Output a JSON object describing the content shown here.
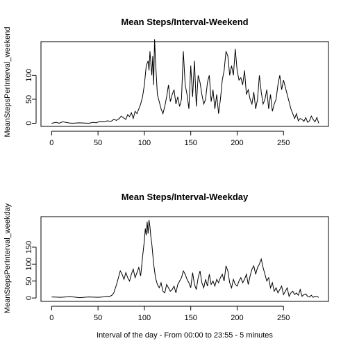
{
  "chart_data": [
    {
      "type": "line",
      "title": "Mean Steps/Interval-Weekend",
      "ylabel": "MeanStepsPerInterval_weekend",
      "xlabel": "",
      "xlim": [
        -11.5,
        298.5
      ],
      "ylim": [
        -6.5,
        170
      ],
      "xticks": [
        0,
        50,
        100,
        150,
        200,
        250
      ],
      "yticks": [
        0,
        50,
        100
      ],
      "grid": false,
      "legend": "none",
      "x": [
        0,
        5,
        8,
        12,
        18,
        22,
        30,
        40,
        45,
        48,
        52,
        56,
        60,
        64,
        67,
        70,
        73,
        75,
        77,
        80,
        82,
        84,
        86,
        88,
        90,
        92,
        94,
        96,
        98,
        100,
        102,
        104,
        105,
        106,
        107,
        108,
        109,
        110,
        111,
        112,
        114,
        116,
        118,
        120,
        122,
        124,
        126,
        128,
        130,
        132,
        134,
        136,
        138,
        140,
        142,
        144,
        146,
        148,
        150,
        152,
        154,
        156,
        158,
        160,
        162,
        164,
        166,
        168,
        170,
        172,
        174,
        176,
        178,
        180,
        182,
        184,
        186,
        188,
        190,
        192,
        194,
        196,
        198,
        200,
        202,
        204,
        206,
        208,
        210,
        212,
        214,
        216,
        218,
        220,
        222,
        224,
        226,
        228,
        230,
        232,
        234,
        236,
        238,
        240,
        242,
        244,
        246,
        248,
        250,
        252,
        254,
        256,
        258,
        260,
        262,
        264,
        266,
        268,
        270,
        272,
        274,
        276,
        278,
        280,
        282,
        284,
        286,
        288
      ],
      "y": [
        0,
        2,
        0,
        3,
        1,
        0,
        1,
        0,
        2,
        1,
        4,
        3,
        5,
        4,
        8,
        6,
        10,
        15,
        12,
        8,
        18,
        14,
        22,
        10,
        25,
        20,
        30,
        40,
        55,
        80,
        120,
        130,
        110,
        150,
        125,
        100,
        140,
        80,
        175,
        130,
        60,
        45,
        30,
        20,
        35,
        55,
        80,
        45,
        60,
        70,
        40,
        55,
        35,
        50,
        150,
        80,
        60,
        30,
        120,
        55,
        130,
        35,
        100,
        85,
        60,
        40,
        50,
        85,
        100,
        45,
        70,
        30,
        60,
        20,
        50,
        90,
        110,
        150,
        140,
        100,
        120,
        100,
        155,
        110,
        90,
        95,
        80,
        110,
        60,
        70,
        50,
        40,
        65,
        30,
        50,
        100,
        65,
        40,
        50,
        70,
        30,
        60,
        25,
        40,
        50,
        80,
        100,
        70,
        90,
        75,
        60,
        45,
        30,
        20,
        10,
        20,
        5,
        10,
        8,
        4,
        12,
        2,
        5,
        15,
        8,
        3,
        12,
        0
      ]
    },
    {
      "type": "line",
      "title": "Mean Steps/Interval-Weekday",
      "ylabel": "MeanStepsPerInterval_weekday",
      "xlabel": "Interval of the day - From 00:00 to 23:55 - 5 minutes",
      "xlim": [
        -11.5,
        298.5
      ],
      "ylim": [
        -10,
        240
      ],
      "xticks": [
        0,
        50,
        100,
        150,
        200,
        250
      ],
      "yticks": [
        0,
        50,
        100,
        150
      ],
      "grid": false,
      "legend": "none",
      "x": [
        0,
        10,
        20,
        30,
        40,
        50,
        55,
        60,
        62,
        65,
        67,
        70,
        72,
        74,
        76,
        78,
        80,
        82,
        84,
        86,
        88,
        90,
        92,
        94,
        96,
        98,
        100,
        101,
        102,
        103,
        104,
        105,
        106,
        107,
        108,
        110,
        112,
        114,
        116,
        118,
        120,
        122,
        124,
        126,
        128,
        130,
        132,
        134,
        136,
        138,
        140,
        142,
        144,
        146,
        148,
        150,
        152,
        154,
        156,
        158,
        160,
        162,
        164,
        166,
        168,
        170,
        172,
        174,
        176,
        178,
        180,
        182,
        184,
        186,
        188,
        190,
        192,
        194,
        196,
        198,
        200,
        202,
        204,
        206,
        208,
        210,
        212,
        214,
        216,
        218,
        220,
        222,
        224,
        226,
        228,
        230,
        232,
        234,
        236,
        238,
        240,
        242,
        244,
        246,
        248,
        250,
        252,
        254,
        256,
        258,
        260,
        262,
        264,
        266,
        268,
        270,
        272,
        274,
        276,
        278,
        280,
        282,
        284,
        286,
        288
      ],
      "y": [
        3,
        2,
        4,
        1,
        3,
        2,
        3,
        5,
        4,
        8,
        15,
        40,
        60,
        80,
        70,
        55,
        75,
        60,
        50,
        70,
        85,
        60,
        75,
        90,
        65,
        120,
        170,
        205,
        185,
        225,
        190,
        230,
        210,
        180,
        160,
        100,
        60,
        40,
        30,
        45,
        20,
        15,
        40,
        30,
        20,
        25,
        35,
        15,
        40,
        50,
        60,
        80,
        70,
        55,
        45,
        30,
        75,
        40,
        25,
        60,
        80,
        45,
        30,
        55,
        35,
        70,
        40,
        50,
        35,
        55,
        45,
        60,
        70,
        50,
        95,
        80,
        45,
        30,
        55,
        40,
        35,
        50,
        60,
        45,
        55,
        70,
        40,
        65,
        85,
        95,
        70,
        90,
        100,
        115,
        90,
        70,
        50,
        60,
        30,
        45,
        20,
        30,
        15,
        25,
        35,
        10,
        20,
        30,
        5,
        15,
        20,
        10,
        15,
        8,
        25,
        5,
        10,
        12,
        5,
        3,
        8,
        2,
        5,
        4,
        2
      ]
    }
  ]
}
